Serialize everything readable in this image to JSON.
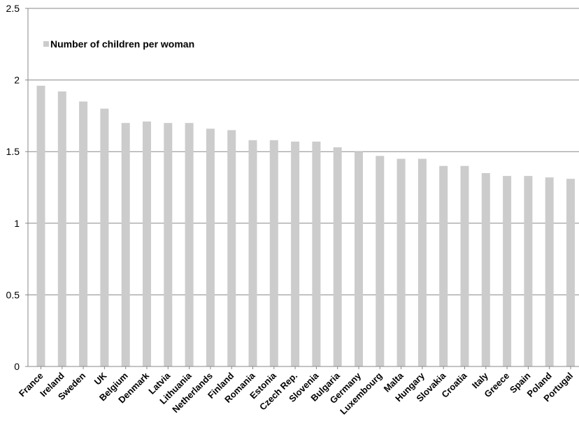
{
  "chart_data": {
    "type": "bar",
    "categories": [
      "France",
      "Ireland",
      "Sweden",
      "UK",
      "Belgium",
      "Denmark",
      "Latvia",
      "Lithuania",
      "Netherlands",
      "Finland",
      "Romania",
      "Estonia",
      "Czech Rep.",
      "Slovenia",
      "Bulgaria",
      "Germany",
      "Luxembourg",
      "Malta",
      "Hungary",
      "Slovakia",
      "Croatia",
      "Italy",
      "Greece",
      "Spain",
      "Poland",
      "Portugal"
    ],
    "series": [
      {
        "name": "Number of children per woman",
        "color": "#cccccc",
        "values": [
          1.96,
          1.92,
          1.85,
          1.8,
          1.7,
          1.71,
          1.7,
          1.7,
          1.66,
          1.65,
          1.58,
          1.58,
          1.57,
          1.57,
          1.53,
          1.5,
          1.47,
          1.45,
          1.45,
          1.4,
          1.4,
          1.35,
          1.33,
          1.33,
          1.32,
          1.31
        ]
      }
    ],
    "ylim": [
      0,
      2.5
    ],
    "yticks": [
      "0",
      "0.5",
      "1",
      "1.5",
      "2",
      "2.5"
    ],
    "grid": true,
    "legend": "top-left",
    "title": "",
    "xlabel": "",
    "ylabel": ""
  }
}
